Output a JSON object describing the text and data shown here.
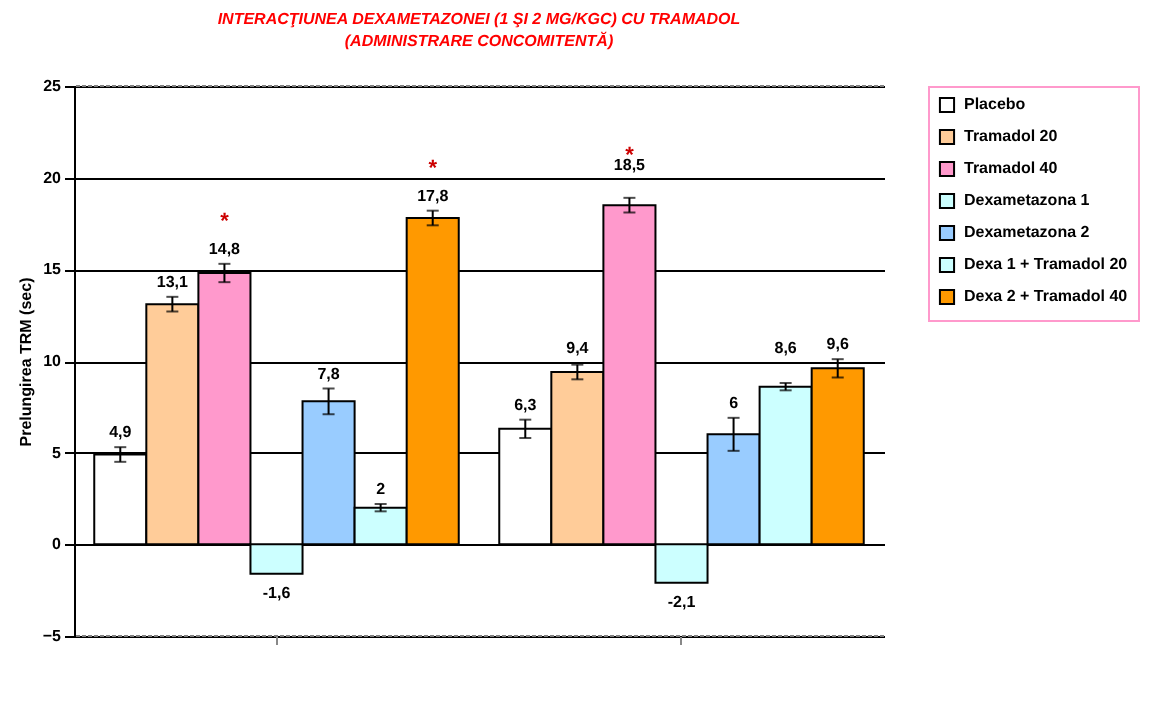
{
  "chart_data": {
    "type": "bar",
    "title": "INTERACŢIUNEA DEXAMETAZONEI (1 ŞI 2 MG/KGC) CU TRAMADOL (ADMINISTRARE CONCOMITENTĂ)",
    "ylabel": "Prelungirea TRM (sec)",
    "categories": [
      null,
      null
    ],
    "series": [
      {
        "name": "Placebo",
        "color": "#ffffff",
        "values": [
          4.9,
          6.3
        ],
        "errors": [
          0.4,
          0.5
        ],
        "value_labels": [
          "4,9",
          "6,3"
        ]
      },
      {
        "name": "Tramadol 20",
        "color": "#ffcc99",
        "values": [
          13.1,
          9.4
        ],
        "errors": [
          0.4,
          0.4
        ],
        "value_labels": [
          "13,1",
          "9,4"
        ]
      },
      {
        "name": "Tramadol 40",
        "color": "#ff99cc",
        "values": [
          14.8,
          18.5
        ],
        "errors": [
          0.5,
          0.4
        ],
        "value_labels": [
          "14,8",
          "18,5"
        ]
      },
      {
        "name": "Dexametazona 1",
        "color": "#ccffff",
        "values": [
          -1.6,
          -2.1
        ],
        "errors": [
          null,
          null
        ],
        "value_labels": [
          "-1,6",
          "-2,1"
        ]
      },
      {
        "name": "Dexametazona 2",
        "color": "#99ccff",
        "values": [
          7.8,
          6
        ],
        "errors": [
          0.7,
          0.9
        ],
        "value_labels": [
          "7,8",
          "6"
        ]
      },
      {
        "name": "Dexa 1 + Tramadol 20",
        "color": "#ccffff",
        "values": [
          2,
          8.6
        ],
        "errors": [
          0.2,
          0.2
        ],
        "value_labels": [
          "2",
          "8,6"
        ]
      },
      {
        "name": "Dexa 2 + Tramadol 40",
        "color": "#ff9900",
        "values": [
          17.8,
          9.6
        ],
        "errors": [
          0.4,
          0.5
        ],
        "value_labels": [
          "17,8",
          "9,6"
        ]
      }
    ],
    "ylim": [
      -5,
      25
    ],
    "yticks": [
      -5,
      0,
      5,
      10,
      15,
      20,
      25
    ],
    "grid": "y",
    "legend": "right",
    "annotations": [
      "*",
      "*",
      "*"
    ]
  }
}
